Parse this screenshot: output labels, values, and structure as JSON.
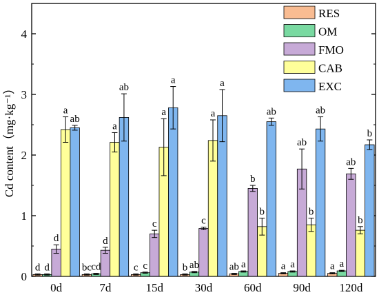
{
  "chart_data": {
    "type": "bar",
    "title": "",
    "xlabel": "",
    "ylabel": "Cd content（mg·kg⁻¹）",
    "ylim": [
      0,
      4.5
    ],
    "yticks": [
      0,
      1,
      2,
      3,
      4
    ],
    "grid": false,
    "legend_position": "top-right",
    "categories": [
      "0d",
      "7d",
      "15d",
      "30d",
      "60d",
      "90d",
      "120d"
    ],
    "series": [
      {
        "name": "RES",
        "color": "#F9BC92",
        "values": [
          0.03,
          0.03,
          0.03,
          0.03,
          0.04,
          0.05,
          0.05
        ],
        "errors": [
          0.01,
          0.01,
          0.01,
          0.01,
          0.01,
          0.01,
          0.01
        ],
        "labels": [
          "d",
          "bc",
          "c",
          "b",
          "ab",
          "a",
          "a"
        ]
      },
      {
        "name": "OM",
        "color": "#79D9A1",
        "values": [
          0.03,
          0.04,
          0.06,
          0.07,
          0.08,
          0.08,
          0.09
        ],
        "errors": [
          0.01,
          0.01,
          0.01,
          0.01,
          0.01,
          0.01,
          0.01
        ],
        "labels": [
          "d",
          "cd",
          "c",
          "ab",
          "a",
          "a",
          "a"
        ]
      },
      {
        "name": "FMO",
        "color": "#C7AAD7",
        "values": [
          0.45,
          0.43,
          0.7,
          0.79,
          1.45,
          1.77,
          1.69
        ],
        "errors": [
          0.07,
          0.05,
          0.06,
          0.02,
          0.05,
          0.33,
          0.09
        ],
        "labels": [
          "d",
          "d",
          "c",
          "c",
          "b",
          "ab",
          "ab"
        ]
      },
      {
        "name": "CAB",
        "color": "#FFFF9A",
        "values": [
          2.42,
          2.21,
          2.13,
          2.24,
          0.82,
          0.85,
          0.76
        ],
        "errors": [
          0.21,
          0.16,
          0.47,
          0.34,
          0.14,
          0.11,
          0.06
        ],
        "labels": [
          "a",
          "a",
          "a",
          "a",
          "b",
          "b",
          "b"
        ]
      },
      {
        "name": "EXC",
        "color": "#7FB6EF",
        "values": [
          2.45,
          2.62,
          2.78,
          2.65,
          2.55,
          2.43,
          2.17
        ],
        "errors": [
          0.04,
          0.39,
          0.35,
          0.43,
          0.06,
          0.2,
          0.08
        ],
        "labels": [
          "ab",
          "ab",
          "a",
          "a",
          "ab",
          "ab",
          "b"
        ]
      }
    ]
  }
}
